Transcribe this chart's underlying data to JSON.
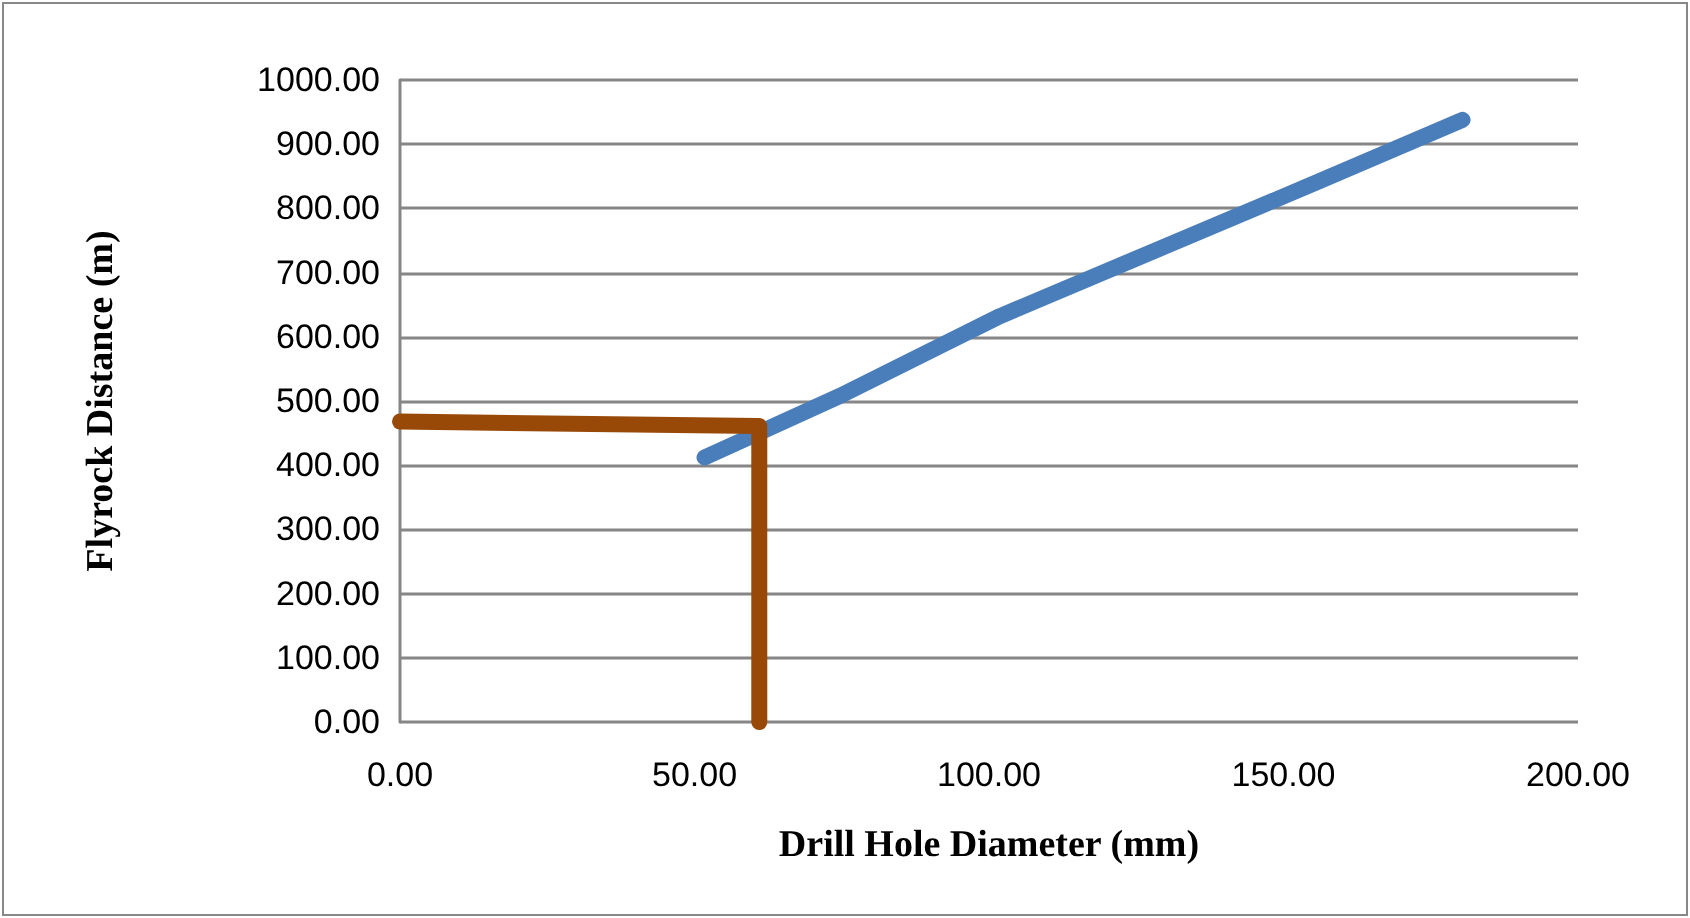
{
  "chart_data": {
    "type": "line",
    "xlabel": "Drill Hole Diameter (mm)",
    "ylabel": "Flyrock Distance (m)",
    "xlim": [
      0,
      200
    ],
    "ylim": [
      0,
      1000
    ],
    "xticks": [
      {
        "value": 0,
        "label": "0.00"
      },
      {
        "value": 50,
        "label": "50.00"
      },
      {
        "value": 100,
        "label": "100.00"
      },
      {
        "value": 150,
        "label": "150.00"
      },
      {
        "value": 200,
        "label": "200.00"
      }
    ],
    "yticks": [
      {
        "value": 0,
        "label": "0.00"
      },
      {
        "value": 100,
        "label": "100.00"
      },
      {
        "value": 200,
        "label": "200.00"
      },
      {
        "value": 300,
        "label": "300.00"
      },
      {
        "value": 400,
        "label": "400.00"
      },
      {
        "value": 500,
        "label": "500.00"
      },
      {
        "value": 600,
        "label": "600.00"
      },
      {
        "value": 700,
        "label": "700.00"
      },
      {
        "value": 800,
        "label": "800.00"
      },
      {
        "value": 900,
        "label": "900.00"
      },
      {
        "value": 1000,
        "label": "1000.00"
      }
    ],
    "grid": "y",
    "line_style": "solid",
    "series": [
      {
        "color": "#4a7ebb",
        "x": [
          51.7,
          74.7,
          101.8,
          128.9,
          156,
          180.4
        ],
        "values": [
          412,
          508,
          632,
          737,
          842,
          938
        ]
      },
      {
        "color": "#984807",
        "x": [
          0,
          61,
          61
        ],
        "values": [
          468,
          461,
          0
        ]
      }
    ]
  }
}
